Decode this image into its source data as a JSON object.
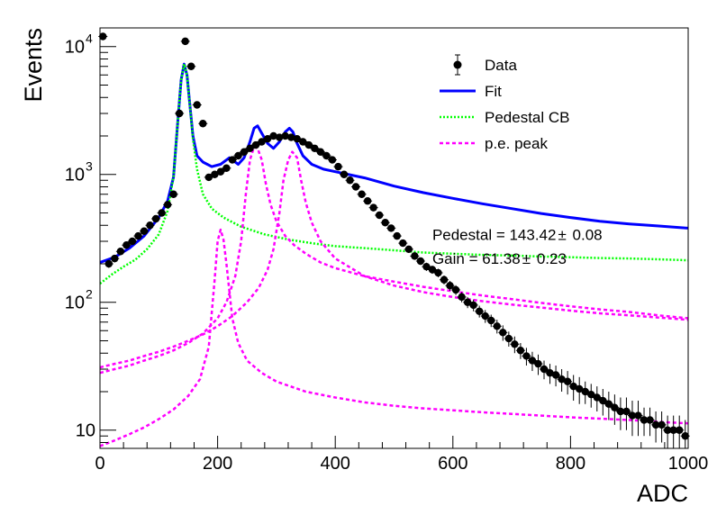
{
  "chart_data": {
    "type": "scatter",
    "xlabel": "ADC",
    "ylabel": "Events",
    "xlim": [
      0,
      1000
    ],
    "ylim": [
      7.2,
      14000
    ],
    "log_y": true,
    "grid": false,
    "legend_position": "top-right",
    "x_ticks": [
      {
        "value": 0,
        "label": "0"
      },
      {
        "value": 200,
        "label": "200"
      },
      {
        "value": 400,
        "label": "400"
      },
      {
        "value": 600,
        "label": "600"
      },
      {
        "value": 800,
        "label": "800"
      },
      {
        "value": 1000,
        "label": "1000"
      }
    ],
    "y_ticks": [
      {
        "value": 10,
        "base": "10",
        "exp": ""
      },
      {
        "value": 100,
        "base": "10",
        "exp": "2"
      },
      {
        "value": 1000,
        "base": "10",
        "exp": "3"
      },
      {
        "value": 10000,
        "base": "10",
        "exp": "4"
      }
    ],
    "legend": [
      {
        "label": "Data",
        "style": "marker",
        "color": "#000000"
      },
      {
        "label": "Fit",
        "style": "solid",
        "color": "#0000ff"
      },
      {
        "label": "Pedestal CB",
        "style": "dotted",
        "color": "#00ff00"
      },
      {
        "label": "p.e. peak",
        "style": "dashed",
        "color": "#ff00ff"
      }
    ],
    "annotations": [
      {
        "label": "Pedestal = 143.42",
        "pm": "±",
        "value": "0.08",
        "x": 565,
        "y": 340
      },
      {
        "label": "Gain = 61.38",
        "pm": "±",
        "value": "0.23",
        "x": 565,
        "y": 220
      }
    ],
    "data_series": {
      "name": "Data",
      "color": "#000000",
      "x": [
        5,
        15,
        25,
        35,
        45,
        55,
        65,
        75,
        85,
        95,
        105,
        115,
        125,
        135,
        145,
        155,
        165,
        175,
        185,
        195,
        205,
        215,
        225,
        235,
        245,
        255,
        265,
        275,
        285,
        295,
        305,
        315,
        325,
        335,
        345,
        355,
        365,
        375,
        385,
        395,
        405,
        415,
        425,
        435,
        445,
        455,
        465,
        475,
        485,
        495,
        505,
        515,
        525,
        535,
        545,
        555,
        565,
        575,
        585,
        595,
        605,
        615,
        625,
        635,
        645,
        655,
        665,
        675,
        685,
        695,
        705,
        715,
        725,
        735,
        745,
        755,
        765,
        775,
        785,
        795,
        805,
        815,
        825,
        835,
        845,
        855,
        865,
        875,
        885,
        895,
        905,
        915,
        925,
        935,
        945,
        955,
        965,
        975,
        985,
        995
      ],
      "y": [
        12000,
        200,
        220,
        250,
        280,
        300,
        330,
        360,
        400,
        450,
        500,
        580,
        700,
        3000,
        11000,
        7000,
        3500,
        2500,
        950,
        1000,
        1050,
        1120,
        1300,
        1400,
        1500,
        1600,
        1700,
        1800,
        1900,
        2000,
        1950,
        2000,
        1950,
        1900,
        1800,
        1700,
        1600,
        1500,
        1400,
        1300,
        1150,
        1000,
        900,
        800,
        700,
        620,
        550,
        480,
        420,
        380,
        330,
        290,
        260,
        230,
        210,
        190,
        180,
        170,
        150,
        135,
        125,
        110,
        100,
        95,
        85,
        78,
        72,
        65,
        58,
        52,
        47,
        42,
        38,
        35,
        33,
        30,
        28,
        27,
        25,
        24,
        22,
        21,
        20,
        19,
        18,
        17,
        16,
        15,
        14,
        14,
        13,
        13,
        12,
        12,
        11,
        11,
        10,
        10,
        10,
        9
      ],
      "err": [
        110,
        14,
        15,
        16,
        17,
        17,
        18,
        19,
        20,
        21,
        22,
        24,
        26,
        55,
        105,
        84,
        59,
        50,
        31,
        32,
        32,
        33,
        36,
        37,
        39,
        40,
        41,
        42,
        44,
        45,
        44,
        45,
        44,
        44,
        42,
        41,
        40,
        39,
        37,
        36,
        34,
        32,
        30,
        28,
        26,
        25,
        23,
        22,
        20,
        19,
        18,
        17,
        16,
        15,
        14,
        14,
        13,
        13,
        12,
        12,
        11,
        10,
        10,
        10,
        9,
        9,
        8,
        8,
        8,
        7,
        7,
        6,
        6,
        6,
        6,
        5,
        5,
        5,
        5,
        5,
        5,
        5,
        4,
        4,
        4,
        4,
        4,
        4,
        4,
        4,
        4,
        4,
        3,
        3,
        3,
        3,
        3,
        3,
        3,
        3
      ]
    },
    "curve_series": [
      {
        "name": "Fit",
        "color": "#0000ff",
        "style": "solid",
        "x": [
          0,
          25,
          50,
          75,
          100,
          115,
          125,
          132,
          138,
          143,
          148,
          152,
          158,
          165,
          175,
          190,
          205,
          220,
          235,
          245,
          255,
          262,
          268,
          275,
          285,
          295,
          305,
          315,
          322,
          328,
          335,
          345,
          360,
          380,
          400,
          450,
          500,
          550,
          600,
          650,
          700,
          750,
          800,
          850,
          900,
          950,
          1000
        ],
        "y": [
          205,
          225,
          265,
          330,
          460,
          620,
          950,
          2500,
          5500,
          7300,
          6000,
          3800,
          2000,
          1400,
          1250,
          1150,
          1200,
          1350,
          1200,
          1350,
          1800,
          2300,
          2400,
          2100,
          1750,
          1600,
          1800,
          2150,
          2300,
          2150,
          1750,
          1400,
          1200,
          1100,
          1050,
          940,
          810,
          720,
          650,
          590,
          540,
          495,
          460,
          430,
          410,
          395,
          380
        ]
      },
      {
        "name": "Pedestal CB",
        "color": "#00ff00",
        "style": "dotted",
        "x": [
          0,
          20,
          40,
          60,
          80,
          100,
          115,
          125,
          132,
          138,
          143,
          148,
          152,
          158,
          165,
          175,
          190,
          210,
          240,
          280,
          320,
          360,
          400,
          450,
          500,
          550,
          600,
          650,
          700,
          750,
          800,
          850,
          900,
          950,
          1000
        ],
        "y": [
          140,
          165,
          190,
          215,
          260,
          340,
          520,
          950,
          2500,
          5500,
          7300,
          6000,
          3800,
          1900,
          1100,
          700,
          540,
          460,
          390,
          340,
          310,
          290,
          275,
          265,
          255,
          245,
          240,
          235,
          232,
          228,
          225,
          222,
          220,
          217,
          213
        ]
      },
      {
        "name": "p.e. peak 1",
        "color": "#ff00ff",
        "style": "dashed",
        "x": [
          0,
          25,
          50,
          75,
          100,
          125,
          150,
          170,
          185,
          195,
          200,
          205,
          210,
          215,
          225,
          235,
          250,
          275,
          300,
          350,
          400,
          450,
          500,
          550,
          600,
          650,
          700,
          750,
          800,
          850,
          900,
          950,
          1000
        ],
        "y": [
          7.5,
          8.3,
          9.3,
          10.5,
          12.2,
          14.5,
          18.5,
          25,
          45,
          150,
          300,
          370,
          310,
          200,
          75,
          48,
          35,
          28,
          24,
          20,
          18,
          16.5,
          15.5,
          14.8,
          14.3,
          13.8,
          13.4,
          13,
          12.6,
          12.3,
          12,
          11.6,
          11.3
        ]
      },
      {
        "name": "p.e. peak 2",
        "color": "#ff00ff",
        "style": "dashed",
        "x": [
          0,
          25,
          50,
          75,
          100,
          125,
          150,
          175,
          200,
          215,
          230,
          240,
          248,
          255,
          262,
          268,
          275,
          282,
          290,
          300,
          315,
          330,
          350,
          375,
          400,
          450,
          500,
          550,
          600,
          650,
          700,
          750,
          800,
          850,
          900,
          950,
          1000
        ],
        "y": [
          28,
          30,
          32,
          35,
          38,
          42,
          48,
          57,
          75,
          100,
          160,
          300,
          700,
          1300,
          1650,
          1600,
          1300,
          850,
          580,
          430,
          330,
          280,
          240,
          205,
          185,
          160,
          145,
          132,
          122,
          113,
          106,
          99,
          93,
          88,
          84,
          79,
          75
        ]
      },
      {
        "name": "p.e. peak 3",
        "color": "#ff00ff",
        "style": "dashed",
        "x": [
          0,
          25,
          50,
          75,
          100,
          125,
          150,
          175,
          200,
          225,
          250,
          270,
          285,
          295,
          305,
          312,
          320,
          327,
          335,
          342,
          350,
          360,
          375,
          400,
          450,
          500,
          550,
          600,
          650,
          700,
          750,
          800,
          850,
          900,
          950,
          1000
        ],
        "y": [
          31,
          33,
          35,
          38,
          41,
          45,
          50,
          56,
          65,
          78,
          100,
          130,
          180,
          260,
          500,
          900,
          1300,
          1500,
          1350,
          900,
          600,
          420,
          300,
          220,
          160,
          135,
          120,
          110,
          102,
          96,
          91,
          86,
          82,
          79,
          76,
          73
        ]
      }
    ]
  }
}
